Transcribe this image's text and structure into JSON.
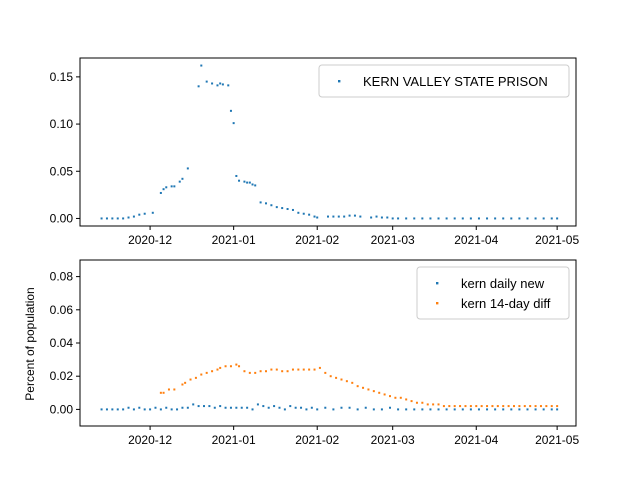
{
  "chart_data": [
    {
      "type": "scatter",
      "title": "",
      "xlabel": "",
      "ylabel": "",
      "x_axis": {
        "ticks": [
          "2020-12-01",
          "2021-01-01",
          "2021-02-01",
          "2021-03-01",
          "2021-04-01",
          "2021-05-01"
        ],
        "tick_labels": [
          "2020-12",
          "2021-01",
          "2021-02",
          "2021-03",
          "2021-04",
          "2021-05"
        ],
        "range": [
          "2020-11-05",
          "2021-05-08"
        ]
      },
      "y_axis": {
        "ticks": [
          0.0,
          0.05,
          0.1,
          0.15
        ],
        "tick_labels": [
          "0.00",
          "0.05",
          "0.10",
          "0.15"
        ],
        "range": [
          -0.008,
          0.17
        ]
      },
      "legend": {
        "position": "top-right"
      },
      "series": [
        {
          "name": "KERN VALLEY STATE PRISON",
          "color": "#1f77b4",
          "points": [
            [
              "2020-11-13",
              0.0
            ],
            [
              "2020-11-15",
              0.0
            ],
            [
              "2020-11-17",
              0.0
            ],
            [
              "2020-11-19",
              0.0
            ],
            [
              "2020-11-21",
              0.0
            ],
            [
              "2020-11-23",
              0.001
            ],
            [
              "2020-11-25",
              0.002
            ],
            [
              "2020-11-27",
              0.004
            ],
            [
              "2020-11-29",
              0.005
            ],
            [
              "2020-12-02",
              0.006
            ],
            [
              "2020-12-05",
              0.027
            ],
            [
              "2020-12-06",
              0.031
            ],
            [
              "2020-12-07",
              0.033
            ],
            [
              "2020-12-09",
              0.034
            ],
            [
              "2020-12-10",
              0.034
            ],
            [
              "2020-12-12",
              0.039
            ],
            [
              "2020-12-13",
              0.042
            ],
            [
              "2020-12-15",
              0.053
            ],
            [
              "2020-12-19",
              0.14
            ],
            [
              "2020-12-20",
              0.162
            ],
            [
              "2020-12-22",
              0.145
            ],
            [
              "2020-12-24",
              0.143
            ],
            [
              "2020-12-26",
              0.141
            ],
            [
              "2020-12-27",
              0.143
            ],
            [
              "2020-12-28",
              0.142
            ],
            [
              "2020-12-30",
              0.141
            ],
            [
              "2020-12-31",
              0.114
            ],
            [
              "2021-01-01",
              0.101
            ],
            [
              "2021-01-02",
              0.045
            ],
            [
              "2021-01-03",
              0.04
            ],
            [
              "2021-01-05",
              0.039
            ],
            [
              "2021-01-06",
              0.038
            ],
            [
              "2021-01-07",
              0.038
            ],
            [
              "2021-01-08",
              0.036
            ],
            [
              "2021-01-09",
              0.035
            ],
            [
              "2021-01-11",
              0.017
            ],
            [
              "2021-01-13",
              0.016
            ],
            [
              "2021-01-15",
              0.014
            ],
            [
              "2021-01-17",
              0.012
            ],
            [
              "2021-01-19",
              0.011
            ],
            [
              "2021-01-21",
              0.01
            ],
            [
              "2021-01-23",
              0.009
            ],
            [
              "2021-01-25",
              0.006
            ],
            [
              "2021-01-27",
              0.005
            ],
            [
              "2021-01-29",
              0.004
            ],
            [
              "2021-01-31",
              0.002
            ],
            [
              "2021-02-01",
              0.001
            ],
            [
              "2021-02-05",
              0.002
            ],
            [
              "2021-02-07",
              0.002
            ],
            [
              "2021-02-09",
              0.002
            ],
            [
              "2021-02-11",
              0.002
            ],
            [
              "2021-02-13",
              0.003
            ],
            [
              "2021-02-15",
              0.003
            ],
            [
              "2021-02-17",
              0.002
            ],
            [
              "2021-02-21",
              0.001
            ],
            [
              "2021-02-23",
              0.002
            ],
            [
              "2021-02-25",
              0.001
            ],
            [
              "2021-02-27",
              0.001
            ],
            [
              "2021-03-01",
              0.0
            ],
            [
              "2021-03-03",
              0.0
            ],
            [
              "2021-03-06",
              0.0
            ],
            [
              "2021-03-09",
              0.0
            ],
            [
              "2021-03-12",
              0.0
            ],
            [
              "2021-03-15",
              0.0
            ],
            [
              "2021-03-18",
              0.0
            ],
            [
              "2021-03-21",
              0.0
            ],
            [
              "2021-03-24",
              0.0
            ],
            [
              "2021-03-27",
              0.0
            ],
            [
              "2021-03-30",
              0.0
            ],
            [
              "2021-04-02",
              0.0
            ],
            [
              "2021-04-05",
              0.0
            ],
            [
              "2021-04-08",
              0.0
            ],
            [
              "2021-04-11",
              0.0
            ],
            [
              "2021-04-14",
              0.0
            ],
            [
              "2021-04-17",
              0.0
            ],
            [
              "2021-04-20",
              0.0
            ],
            [
              "2021-04-23",
              0.0
            ],
            [
              "2021-04-26",
              0.0
            ],
            [
              "2021-04-29",
              0.0
            ],
            [
              "2021-05-01",
              0.0
            ]
          ]
        }
      ]
    },
    {
      "type": "scatter",
      "title": "",
      "xlabel": "",
      "ylabel": "Percent of population",
      "x_axis": {
        "ticks": [
          "2020-12-01",
          "2021-01-01",
          "2021-02-01",
          "2021-03-01",
          "2021-04-01",
          "2021-05-01"
        ],
        "tick_labels": [
          "2020-12",
          "2021-01",
          "2021-02",
          "2021-03",
          "2021-04",
          "2021-05"
        ],
        "range": [
          "2020-11-05",
          "2021-05-08"
        ]
      },
      "y_axis": {
        "ticks": [
          0.0,
          0.02,
          0.04,
          0.06,
          0.08
        ],
        "tick_labels": [
          "0.00",
          "0.02",
          "0.04",
          "0.06",
          "0.08"
        ],
        "range": [
          -0.01,
          0.09
        ]
      },
      "legend": {
        "position": "top-right"
      },
      "series": [
        {
          "name": "kern daily new",
          "color": "#1f77b4",
          "points": [
            [
              "2020-11-13",
              0.0
            ],
            [
              "2020-11-15",
              0.0
            ],
            [
              "2020-11-17",
              0.0
            ],
            [
              "2020-11-19",
              0.0
            ],
            [
              "2020-11-21",
              0.0
            ],
            [
              "2020-11-23",
              0.001
            ],
            [
              "2020-11-25",
              0.0
            ],
            [
              "2020-11-27",
              0.001
            ],
            [
              "2020-11-29",
              0.0
            ],
            [
              "2020-12-01",
              0.0
            ],
            [
              "2020-12-03",
              0.001
            ],
            [
              "2020-12-05",
              0.0
            ],
            [
              "2020-12-07",
              0.001
            ],
            [
              "2020-12-09",
              0.0
            ],
            [
              "2020-12-11",
              0.0
            ],
            [
              "2020-12-13",
              0.001
            ],
            [
              "2020-12-15",
              0.001
            ],
            [
              "2020-12-17",
              0.003
            ],
            [
              "2020-12-19",
              0.002
            ],
            [
              "2020-12-21",
              0.002
            ],
            [
              "2020-12-23",
              0.002
            ],
            [
              "2020-12-25",
              0.001
            ],
            [
              "2020-12-27",
              0.002
            ],
            [
              "2020-12-29",
              0.001
            ],
            [
              "2020-12-31",
              0.001
            ],
            [
              "2021-01-02",
              0.001
            ],
            [
              "2021-01-04",
              0.001
            ],
            [
              "2021-01-06",
              0.001
            ],
            [
              "2021-01-08",
              0.0
            ],
            [
              "2021-01-10",
              0.003
            ],
            [
              "2021-01-12",
              0.002
            ],
            [
              "2021-01-14",
              0.001
            ],
            [
              "2021-01-16",
              0.002
            ],
            [
              "2021-01-18",
              0.001
            ],
            [
              "2021-01-20",
              0.0
            ],
            [
              "2021-01-22",
              0.002
            ],
            [
              "2021-01-24",
              0.001
            ],
            [
              "2021-01-26",
              0.001
            ],
            [
              "2021-01-28",
              0.0
            ],
            [
              "2021-01-30",
              0.001
            ],
            [
              "2021-02-01",
              0.0
            ],
            [
              "2021-02-04",
              0.001
            ],
            [
              "2021-02-07",
              0.0
            ],
            [
              "2021-02-10",
              0.001
            ],
            [
              "2021-02-13",
              0.001
            ],
            [
              "2021-02-16",
              0.0
            ],
            [
              "2021-02-19",
              0.001
            ],
            [
              "2021-02-22",
              0.0
            ],
            [
              "2021-02-25",
              0.0
            ],
            [
              "2021-02-28",
              0.001
            ],
            [
              "2021-03-03",
              0.0
            ],
            [
              "2021-03-06",
              0.0
            ],
            [
              "2021-03-09",
              0.0
            ],
            [
              "2021-03-12",
              0.0
            ],
            [
              "2021-03-15",
              0.0
            ],
            [
              "2021-03-18",
              0.0
            ],
            [
              "2021-03-21",
              0.0
            ],
            [
              "2021-03-24",
              0.0
            ],
            [
              "2021-03-27",
              0.0
            ],
            [
              "2021-03-30",
              0.0
            ],
            [
              "2021-04-02",
              0.0
            ],
            [
              "2021-04-05",
              0.0
            ],
            [
              "2021-04-08",
              0.0
            ],
            [
              "2021-04-11",
              0.0
            ],
            [
              "2021-04-14",
              0.0
            ],
            [
              "2021-04-17",
              0.0
            ],
            [
              "2021-04-20",
              0.0
            ],
            [
              "2021-04-23",
              0.0
            ],
            [
              "2021-04-26",
              0.0
            ],
            [
              "2021-04-29",
              0.0
            ],
            [
              "2021-05-01",
              0.0
            ]
          ]
        },
        {
          "name": "kern 14-day diff",
          "color": "#ff7f0e",
          "points": [
            [
              "2020-12-05",
              0.01
            ],
            [
              "2020-12-06",
              0.01
            ],
            [
              "2020-12-08",
              0.012
            ],
            [
              "2020-12-10",
              0.012
            ],
            [
              "2020-12-13",
              0.015
            ],
            [
              "2020-12-14",
              0.016
            ],
            [
              "2020-12-16",
              0.018
            ],
            [
              "2020-12-18",
              0.019
            ],
            [
              "2020-12-20",
              0.021
            ],
            [
              "2020-12-22",
              0.022
            ],
            [
              "2020-12-24",
              0.023
            ],
            [
              "2020-12-26",
              0.024
            ],
            [
              "2020-12-27",
              0.025
            ],
            [
              "2020-12-29",
              0.026
            ],
            [
              "2020-12-31",
              0.026
            ],
            [
              "2021-01-02",
              0.027
            ],
            [
              "2021-01-03",
              0.026
            ],
            [
              "2021-01-05",
              0.023
            ],
            [
              "2021-01-07",
              0.022
            ],
            [
              "2021-01-09",
              0.022
            ],
            [
              "2021-01-11",
              0.023
            ],
            [
              "2021-01-13",
              0.023
            ],
            [
              "2021-01-15",
              0.024
            ],
            [
              "2021-01-17",
              0.024
            ],
            [
              "2021-01-19",
              0.023
            ],
            [
              "2021-01-21",
              0.023
            ],
            [
              "2021-01-23",
              0.024
            ],
            [
              "2021-01-25",
              0.024
            ],
            [
              "2021-01-27",
              0.024
            ],
            [
              "2021-01-29",
              0.024
            ],
            [
              "2021-01-31",
              0.024
            ],
            [
              "2021-02-02",
              0.025
            ],
            [
              "2021-02-04",
              0.022
            ],
            [
              "2021-02-06",
              0.02
            ],
            [
              "2021-02-08",
              0.019
            ],
            [
              "2021-02-10",
              0.018
            ],
            [
              "2021-02-12",
              0.017
            ],
            [
              "2021-02-14",
              0.016
            ],
            [
              "2021-02-16",
              0.014
            ],
            [
              "2021-02-18",
              0.013
            ],
            [
              "2021-02-20",
              0.012
            ],
            [
              "2021-02-22",
              0.011
            ],
            [
              "2021-02-24",
              0.01
            ],
            [
              "2021-02-26",
              0.009
            ],
            [
              "2021-02-28",
              0.008
            ],
            [
              "2021-03-02",
              0.007
            ],
            [
              "2021-03-04",
              0.007
            ],
            [
              "2021-03-06",
              0.006
            ],
            [
              "2021-03-08",
              0.005
            ],
            [
              "2021-03-10",
              0.004
            ],
            [
              "2021-03-12",
              0.004
            ],
            [
              "2021-03-14",
              0.003
            ],
            [
              "2021-03-16",
              0.003
            ],
            [
              "2021-03-18",
              0.003
            ],
            [
              "2021-03-20",
              0.002
            ],
            [
              "2021-03-22",
              0.002
            ],
            [
              "2021-03-24",
              0.002
            ],
            [
              "2021-03-26",
              0.002
            ],
            [
              "2021-03-28",
              0.002
            ],
            [
              "2021-03-30",
              0.002
            ],
            [
              "2021-04-01",
              0.002
            ],
            [
              "2021-04-03",
              0.002
            ],
            [
              "2021-04-05",
              0.002
            ],
            [
              "2021-04-07",
              0.002
            ],
            [
              "2021-04-09",
              0.002
            ],
            [
              "2021-04-11",
              0.002
            ],
            [
              "2021-04-13",
              0.002
            ],
            [
              "2021-04-15",
              0.002
            ],
            [
              "2021-04-17",
              0.002
            ],
            [
              "2021-04-19",
              0.002
            ],
            [
              "2021-04-21",
              0.002
            ],
            [
              "2021-04-23",
              0.002
            ],
            [
              "2021-04-25",
              0.002
            ],
            [
              "2021-04-27",
              0.002
            ],
            [
              "2021-04-29",
              0.002
            ],
            [
              "2021-05-01",
              0.002
            ]
          ]
        }
      ]
    }
  ]
}
